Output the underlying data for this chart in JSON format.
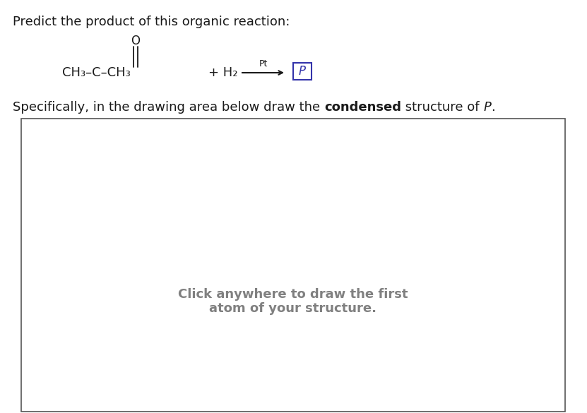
{
  "background_color": "#ffffff",
  "title_text": "Predict the product of this organic reaction:",
  "title_color": "#1a1a1a",
  "title_fontsize": 13,
  "O_text": "O",
  "O_fontsize": 12,
  "ch3_c_ch3_text": "CH₃–C–CH₃",
  "plus_h2_text": "+ H₂",
  "pt_text": "Pt",
  "pt_fontsize": 9,
  "P_text": "P",
  "P_fontsize": 12,
  "P_box_border_color": "#3333aa",
  "P_text_color": "#3333aa",
  "reaction_main_fontsize": 13,
  "reaction_main_color": "#1a1a1a",
  "arrow_color": "#1a1a1a",
  "double_bond_color": "#1a1a1a",
  "specifically_part1": "Specifically, in the drawing area below draw the ",
  "specifically_bold": "condensed",
  "specifically_part3": " structure of ",
  "specifically_italic": "P",
  "specifically_end": ".",
  "specifically_fontsize": 13,
  "specifically_color": "#1a1a1a",
  "drawing_box_color": "#555555",
  "click_line1": "Click anywhere to draw the first",
  "click_line2": "atom of your structure.",
  "click_fontsize": 13,
  "click_color": "#808080"
}
